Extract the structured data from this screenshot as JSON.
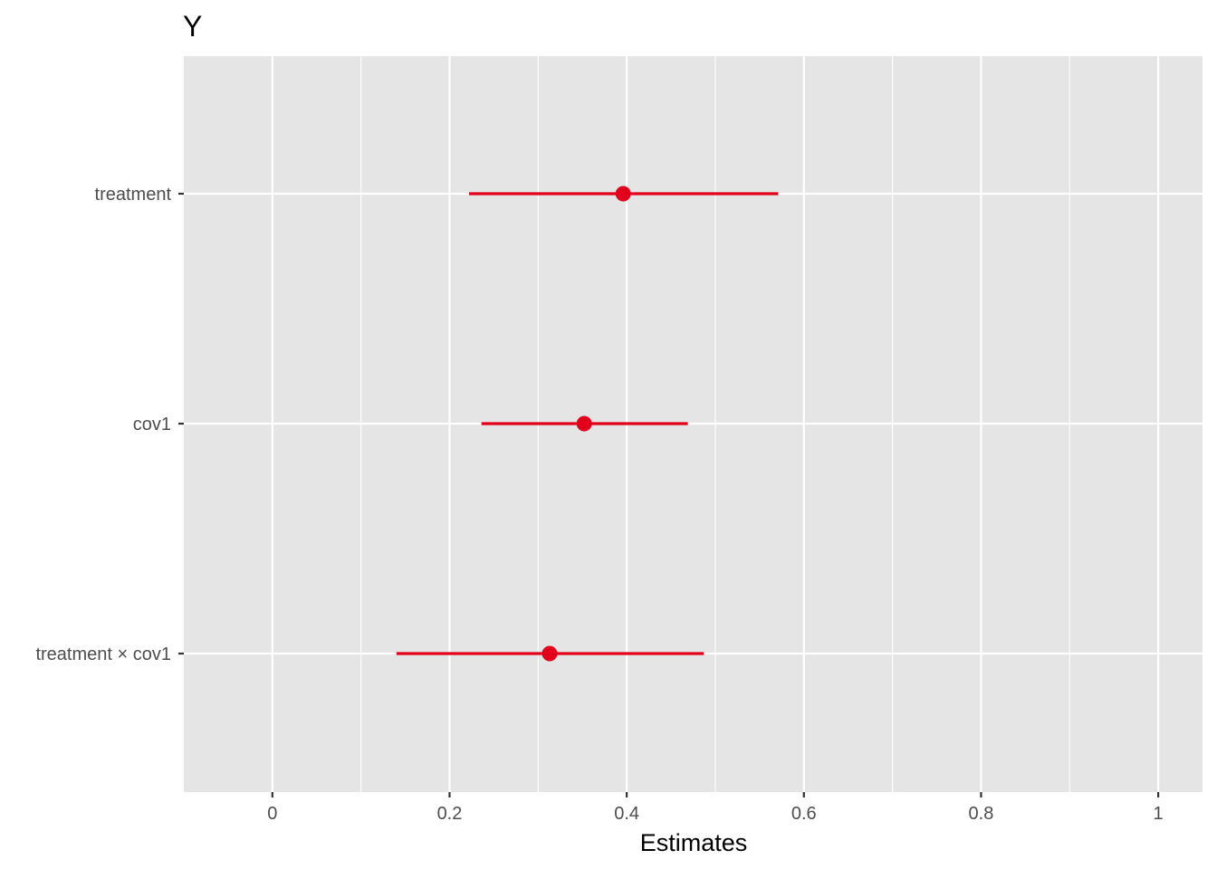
{
  "chart_data": {
    "type": "scatter",
    "title": "Y",
    "xlabel": "Estimates",
    "ylabel": "",
    "xlim": [
      -0.1,
      1.05
    ],
    "x_ticks": [
      0,
      0.2,
      0.4,
      0.6,
      0.8,
      1
    ],
    "x_tick_labels": [
      "0",
      "0.2",
      "0.4",
      "0.6",
      "0.8",
      "1"
    ],
    "x_minor_ticks": [
      0.1,
      0.3,
      0.5,
      0.7,
      0.9
    ],
    "categories": [
      "treatment",
      "cov1",
      "treatment × cov1"
    ],
    "estimates": [
      0.396,
      0.352,
      0.313
    ],
    "conf_low": [
      0.222,
      0.236,
      0.14
    ],
    "conf_high": [
      0.571,
      0.469,
      0.487
    ],
    "grid": true,
    "legend": "none",
    "colors": {
      "panel_background": "#e5e5e5",
      "grid": "#ffffff",
      "point": "#e2001a"
    }
  }
}
